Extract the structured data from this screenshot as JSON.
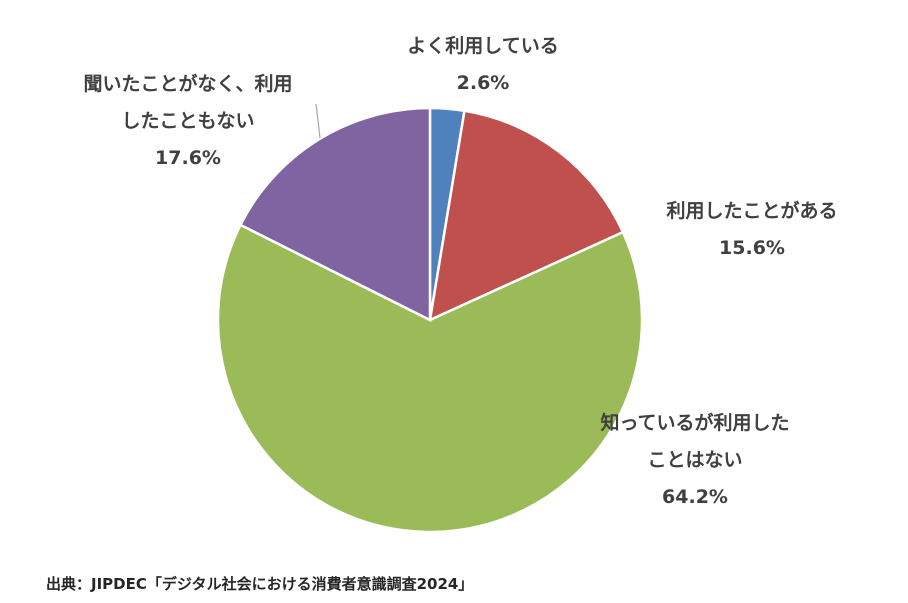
{
  "chart_data": {
    "type": "pie",
    "start": "top",
    "direction": "clockwise",
    "slices": [
      {
        "label_lines": [
          "よく利用している"
        ],
        "value": 2.6,
        "value_label": "2.6%",
        "color": "#4F81BD"
      },
      {
        "label_lines": [
          "利用したことがある"
        ],
        "value": 15.6,
        "value_label": "15.6%",
        "color": "#C0504D"
      },
      {
        "label_lines": [
          "知っているが利用した",
          "ことはない"
        ],
        "value": 64.2,
        "value_label": "64.2%",
        "color": "#9BBB59"
      },
      {
        "label_lines": [
          "聞いたことがなく、利用",
          "したこともない"
        ],
        "value": 17.6,
        "value_label": "17.6%",
        "color": "#8064A2"
      }
    ]
  },
  "source_note": "出典：JIPDEC「デジタル社会における消費者意識調査2024」"
}
